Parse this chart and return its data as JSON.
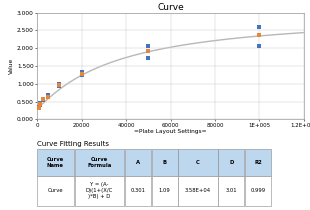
{
  "title": "Curve",
  "xlabel": "=Plate Layout Settings=",
  "xlim": [
    0,
    120000
  ],
  "ylim": [
    0.0,
    3.0
  ],
  "yticks": [
    0.0,
    0.5,
    1.0,
    1.5,
    2.0,
    2.5,
    3.0
  ],
  "xticks": [
    0,
    20000,
    40000,
    60000,
    80000,
    100000,
    120000
  ],
  "xtick_labels": [
    "0",
    "20000",
    "40000",
    "60000",
    "80000",
    "1E+005",
    "1.2E+005"
  ],
  "data_points_x": [
    625,
    1250,
    2500,
    5000,
    10000,
    20000,
    50000,
    100000
  ],
  "data_points_y_orange": [
    0.33,
    0.43,
    0.56,
    0.64,
    0.96,
    1.28,
    1.93,
    2.38
  ],
  "data_points_y_blue1": [
    0.345,
    0.455,
    0.57,
    0.67,
    0.995,
    1.32,
    2.05,
    2.6
  ],
  "data_points_y_blue2": [
    0.32,
    0.415,
    0.545,
    0.615,
    0.945,
    1.25,
    1.72,
    2.05
  ],
  "curve_A": 0.301,
  "curve_B": 1.09,
  "curve_C": 35800,
  "curve_D": 3.01,
  "curve_color": "#b8b8b8",
  "orange_color": "#E8873A",
  "blue_color": "#4472C4",
  "table_header_bg": "#BDD7EE",
  "table_title": "Curve Fitting Results",
  "col_headers": [
    "Curve\nName",
    "Curve\nFormula",
    "A",
    "B",
    "C",
    "D",
    "R2"
  ],
  "row_data": [
    "Curve",
    "Y = (A-\nD)(1+(X/C\n)*B) + D",
    "0.301",
    "1.09",
    "3.58E+04",
    "3.01",
    "0.999"
  ],
  "col_widths": [
    0.14,
    0.19,
    0.1,
    0.1,
    0.15,
    0.1,
    0.1
  ]
}
